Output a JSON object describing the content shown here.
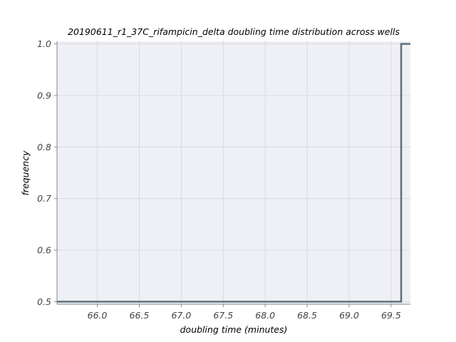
{
  "chart_data": {
    "type": "line",
    "subtype": "ecdf-step",
    "title": "20190611_r1_37C_rifampicin_delta doubling time distribution across wells",
    "xlabel": "doubling time (minutes)",
    "ylabel": "frequency",
    "xlim": [
      65.52,
      69.73
    ],
    "ylim": [
      0.495,
      1.005
    ],
    "xticks": [
      "66.0",
      "66.5",
      "67.0",
      "67.5",
      "68.0",
      "68.5",
      "69.0",
      "69.5"
    ],
    "xtick_values": [
      66.0,
      66.5,
      67.0,
      67.5,
      68.0,
      68.5,
      69.0,
      69.5
    ],
    "yticks": [
      "0.5",
      "0.6",
      "0.7",
      "0.8",
      "0.9",
      "1.0"
    ],
    "ytick_values": [
      0.5,
      0.6,
      0.7,
      0.8,
      0.9,
      1.0
    ],
    "grid": true,
    "series": [
      {
        "x": [
          65.52,
          69.62,
          69.62,
          69.73
        ],
        "y": [
          0.5,
          0.5,
          1.0,
          1.0
        ],
        "color": "#5f707c"
      }
    ],
    "background": "#eff0f5",
    "grid_color": "#d2d4dc",
    "spine_color": "#7f8a95"
  }
}
